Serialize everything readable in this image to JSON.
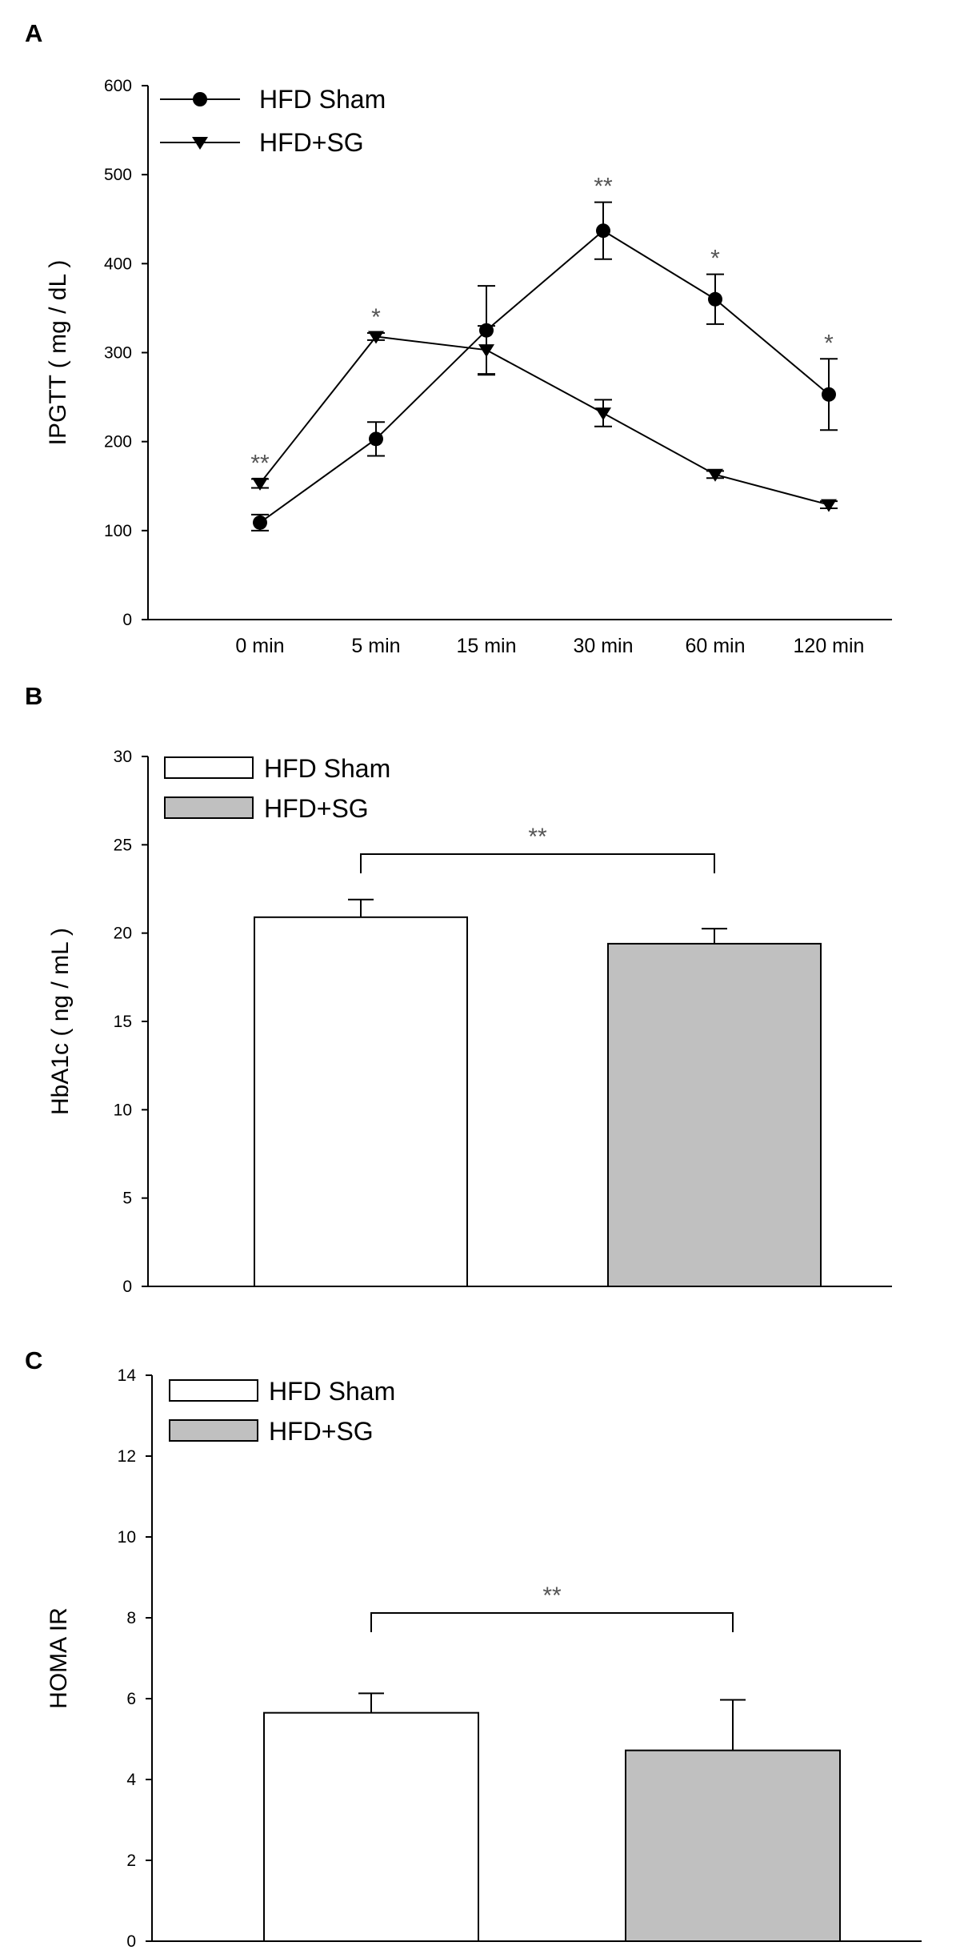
{
  "panels": [
    {
      "letter": "A",
      "chart_data": {
        "type": "line",
        "ylabel": "IPGTT ( mg / dL )",
        "xlabel": "",
        "categories": [
          "0 min",
          "5 min",
          "15 min",
          "30 min",
          "60 min",
          "120 min"
        ],
        "ylim": [
          0,
          600
        ],
        "yticks": [
          0,
          100,
          200,
          300,
          400,
          500,
          600
        ],
        "grid": false,
        "legend_position": "top-left",
        "series": [
          {
            "name": "HFD Sham",
            "marker": "circle",
            "values": [
              109,
              203,
              325,
              437,
              360,
              253
            ],
            "errors": [
              9,
              19,
              50,
              32,
              28,
              40
            ]
          },
          {
            "name": "HFD+SG",
            "marker": "triangle-down",
            "values": [
              153,
              318,
              303,
              232,
              163,
              129
            ],
            "errors": [
              5,
              4,
              27,
              15,
              4,
              4
            ]
          }
        ],
        "annotations": [
          "**",
          "*",
          "",
          "**",
          "*",
          "*"
        ]
      }
    },
    {
      "letter": "B",
      "chart_data": {
        "type": "bar",
        "ylabel": "HbA1c ( ng / mL )",
        "xlabel": "",
        "categories": [
          "HFD Sham",
          "HFD+SG"
        ],
        "values": [
          20.9,
          19.4
        ],
        "errors": [
          1.0,
          0.85
        ],
        "colors": [
          "#ffffff",
          "#c0c0c0"
        ],
        "ylim": [
          0,
          30
        ],
        "yticks": [
          0,
          5,
          10,
          15,
          20,
          25,
          30
        ],
        "grid": false,
        "legend_position": "top-left",
        "significance": "**"
      }
    },
    {
      "letter": "C",
      "chart_data": {
        "type": "bar",
        "ylabel": "HOMA IR",
        "xlabel": "",
        "categories": [
          "HFD Sham",
          "HFD+SG"
        ],
        "values": [
          5.65,
          4.72
        ],
        "errors": [
          0.48,
          1.25
        ],
        "colors": [
          "#ffffff",
          "#c0c0c0"
        ],
        "ylim": [
          0,
          14
        ],
        "yticks": [
          0,
          2,
          4,
          6,
          8,
          10,
          12,
          14
        ],
        "grid": false,
        "legend_position": "top-left",
        "significance": "**"
      }
    }
  ]
}
